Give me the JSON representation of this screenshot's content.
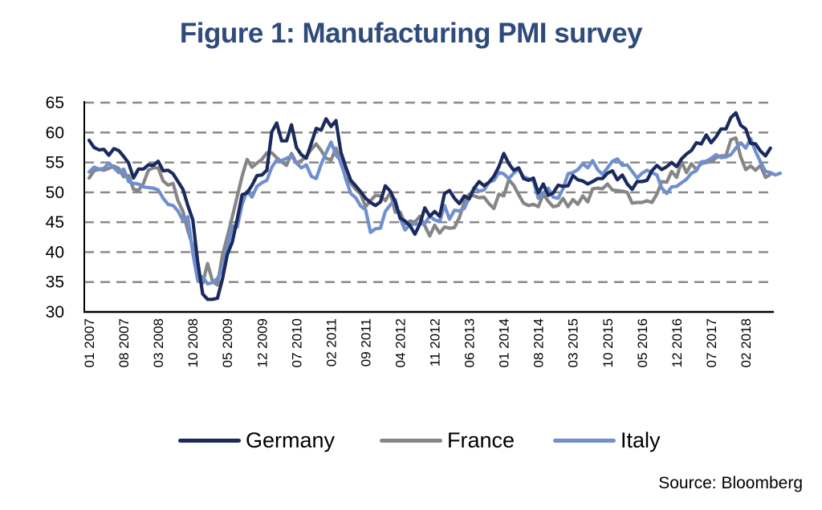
{
  "chart_data": {
    "type": "line",
    "title": "Figure 1: Manufacturing PMI survey",
    "xlabel": "",
    "ylabel": "",
    "ylim": [
      30,
      65
    ],
    "yticks": [
      "30",
      "35",
      "40",
      "45",
      "50",
      "55",
      "60",
      "65"
    ],
    "grid": "horizontal-dashed",
    "legend_position": "bottom",
    "x_start": "01 2007",
    "x_end": "07 2018",
    "frequency": "monthly",
    "xtick_labels": [
      "01 2007",
      "08 2007",
      "03 2008",
      "10 2008",
      "05 2009",
      "12 2009",
      "07 2010",
      "02 2011",
      "09 2011",
      "04 2012",
      "11 2012",
      "06 2013",
      "01 2014",
      "08 2014",
      "03 2015",
      "10 2015",
      "05 2016",
      "12 2016",
      "07 2017",
      "02 2018"
    ],
    "xtick_step_months": 7,
    "series": [
      {
        "name": "Germany",
        "color": "#1a2a5e",
        "values": [
          58.7,
          57.5,
          57.1,
          57.2,
          56.2,
          57.3,
          57.0,
          56.0,
          54.9,
          52.4,
          53.9,
          53.9,
          54.6,
          54.5,
          55.2,
          53.6,
          53.7,
          53.1,
          51.8,
          50.5,
          47.8,
          45.4,
          38.4,
          33.0,
          32.1,
          32.1,
          32.3,
          35.5,
          39.6,
          41.7,
          45.5,
          49.6,
          49.9,
          51.2,
          52.8,
          52.9,
          53.7,
          60.1,
          61.6,
          58.6,
          58.6,
          61.3,
          57.5,
          56.3,
          55.7,
          58.2,
          60.7,
          60.4,
          62.3,
          61.0,
          62.0,
          56.7,
          54.2,
          52.0,
          51.1,
          50.1,
          49.0,
          48.3,
          47.8,
          48.4,
          51.1,
          50.2,
          48.4,
          45.7,
          45.2,
          44.4,
          43.0,
          44.7,
          47.4,
          46.0,
          46.8,
          46.0,
          49.8,
          50.3,
          49.0,
          48.1,
          49.4,
          48.9,
          50.7,
          51.8,
          51.1,
          51.7,
          52.7,
          54.3,
          56.5,
          54.8,
          53.7,
          54.1,
          52.3,
          52.0,
          52.4,
          49.9,
          51.4,
          49.5,
          49.9,
          51.2,
          51.0,
          51.1,
          52.8,
          52.1,
          51.9,
          51.4,
          51.8,
          52.3,
          52.3,
          53.2,
          53.6,
          52.1,
          52.9,
          51.4,
          50.5,
          51.8,
          51.8,
          52.0,
          53.6,
          54.5,
          53.8,
          54.3,
          55.0,
          54.3,
          55.6,
          56.4,
          57.0,
          58.3,
          58.1,
          59.6,
          58.3,
          59.3,
          60.6,
          60.6,
          62.5,
          63.3,
          61.2,
          60.6,
          58.2,
          58.1,
          56.9,
          56.1,
          57.4
        ]
      },
      {
        "name": "France",
        "color": "#868686",
        "values": [
          52.4,
          53.6,
          53.9,
          53.7,
          54.0,
          54.4,
          54.0,
          52.6,
          52.8,
          50.5,
          50.3,
          51.5,
          53.7,
          54.1,
          54.1,
          51.9,
          51.2,
          51.5,
          48.6,
          46.8,
          43.6,
          41.0,
          35.6,
          34.8,
          38.1,
          35.1,
          34.5,
          39.5,
          42.6,
          45.9,
          49.3,
          52.7,
          55.5,
          54.2,
          54.9,
          55.5,
          56.6,
          56.6,
          55.8,
          55.1,
          54.5,
          56.5,
          54.9,
          55.3,
          56.0,
          57.2,
          58.1,
          57.0,
          55.7,
          55.4,
          57.4,
          54.8,
          52.5,
          51.5,
          50.5,
          49.7,
          47.6,
          48.6,
          49.5,
          49.4,
          48.6,
          50.0,
          46.7,
          46.7,
          44.7,
          45.2,
          45.0,
          46.0,
          44.4,
          42.7,
          44.5,
          43.2,
          44.2,
          44.0,
          44.1,
          45.8,
          48.4,
          49.7,
          49.4,
          49.1,
          49.2,
          48.1,
          47.3,
          49.7,
          49.4,
          52.1,
          51.2,
          49.6,
          48.2,
          47.8,
          48.0,
          47.6,
          49.7,
          48.5,
          47.6,
          47.8,
          49.0,
          47.6,
          48.8,
          48.0,
          49.4,
          48.4,
          50.6,
          50.7,
          50.6,
          51.4,
          50.4,
          50.3,
          50.2,
          50.0,
          48.2,
          48.3,
          48.3,
          48.6,
          48.3,
          49.7,
          51.8,
          51.7,
          53.5,
          52.5,
          55.1,
          53.3,
          54.8,
          53.8,
          54.8,
          55.0,
          55.1,
          55.8,
          56.1,
          56.1,
          58.8,
          59.1,
          55.9,
          53.8,
          54.4,
          53.7,
          54.5,
          52.5,
          53.0
        ]
      },
      {
        "name": "Italy",
        "color": "#6f8fcf",
        "values": [
          53.4,
          54.2,
          53.9,
          54.0,
          54.9,
          54.1,
          53.3,
          53.9,
          51.8,
          51.5,
          51.4,
          50.9,
          50.8,
          50.7,
          50.4,
          49.0,
          48.0,
          47.8,
          46.9,
          45.3,
          45.9,
          39.8,
          35.3,
          35.9,
          34.7,
          34.9,
          35.6,
          37.2,
          40.8,
          44.4,
          44.2,
          48.0,
          50.2,
          49.2,
          51.0,
          51.6,
          52.0,
          54.2,
          55.4,
          55.3,
          55.7,
          56.1,
          54.9,
          54.1,
          54.6,
          52.7,
          52.3,
          54.7,
          56.6,
          58.4,
          56.2,
          55.3,
          52.2,
          49.8,
          49.1,
          47.7,
          47.1,
          43.3,
          43.9,
          44.0,
          46.8,
          47.9,
          48.8,
          45.6,
          43.7,
          44.6,
          44.7,
          44.7,
          44.8,
          46.0,
          45.4,
          45.1,
          47.8,
          45.5,
          47.0,
          46.9,
          47.3,
          49.1,
          50.8,
          50.2,
          50.4,
          51.7,
          52.0,
          53.3,
          53.1,
          52.3,
          53.2,
          53.9,
          52.6,
          52.3,
          51.9,
          49.0,
          49.9,
          50.7,
          49.2,
          49.0,
          50.6,
          53.1,
          53.3,
          53.8,
          54.8,
          54.1,
          55.3,
          53.8,
          53.0,
          54.1,
          55.2,
          55.6,
          54.5,
          54.6,
          53.5,
          52.4,
          53.2,
          53.7,
          53.3,
          52.9,
          50.7,
          49.8,
          50.9,
          51.0,
          51.6,
          52.2,
          53.2,
          53.6,
          55.1,
          55.2,
          55.7,
          56.3,
          55.8,
          55.9,
          56.3,
          57.4,
          58.3,
          57.4,
          59.0,
          56.8,
          55.1,
          53.5,
          53.3,
          52.9,
          53.2
        ]
      }
    ]
  },
  "legend": {
    "items": [
      {
        "label": "Germany",
        "color": "#1a2a5e"
      },
      {
        "label": "France",
        "color": "#868686"
      },
      {
        "label": "Italy",
        "color": "#6f8fcf"
      }
    ]
  },
  "source": "Source: Bloomberg",
  "title": "Figure 1: Manufacturing PMI survey"
}
